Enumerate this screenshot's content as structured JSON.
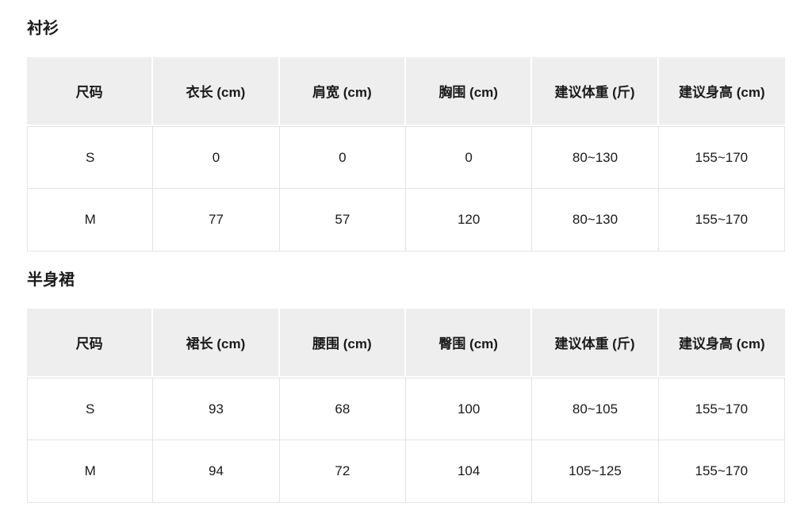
{
  "colors": {
    "background": "#ffffff",
    "header_cell_bg": "#eeeeee",
    "cell_border": "#e3e3e3",
    "text": "#1a1a1a"
  },
  "tables": [
    {
      "title": "衬衫",
      "headers": [
        "尺码",
        "衣长 (cm)",
        "肩宽 (cm)",
        "胸围 (cm)",
        "建议体重 (斤)",
        "建议身高 (cm)"
      ],
      "rows": [
        [
          "S",
          "0",
          "0",
          "0",
          "80~130",
          "155~170"
        ],
        [
          "M",
          "77",
          "57",
          "120",
          "80~130",
          "155~170"
        ]
      ]
    },
    {
      "title": "半身裙",
      "headers": [
        "尺码",
        "裙长 (cm)",
        "腰围 (cm)",
        "臀围 (cm)",
        "建议体重 (斤)",
        "建议身高 (cm)"
      ],
      "rows": [
        [
          "S",
          "93",
          "68",
          "100",
          "80~105",
          "155~170"
        ],
        [
          "M",
          "94",
          "72",
          "104",
          "105~125",
          "155~170"
        ]
      ]
    }
  ]
}
